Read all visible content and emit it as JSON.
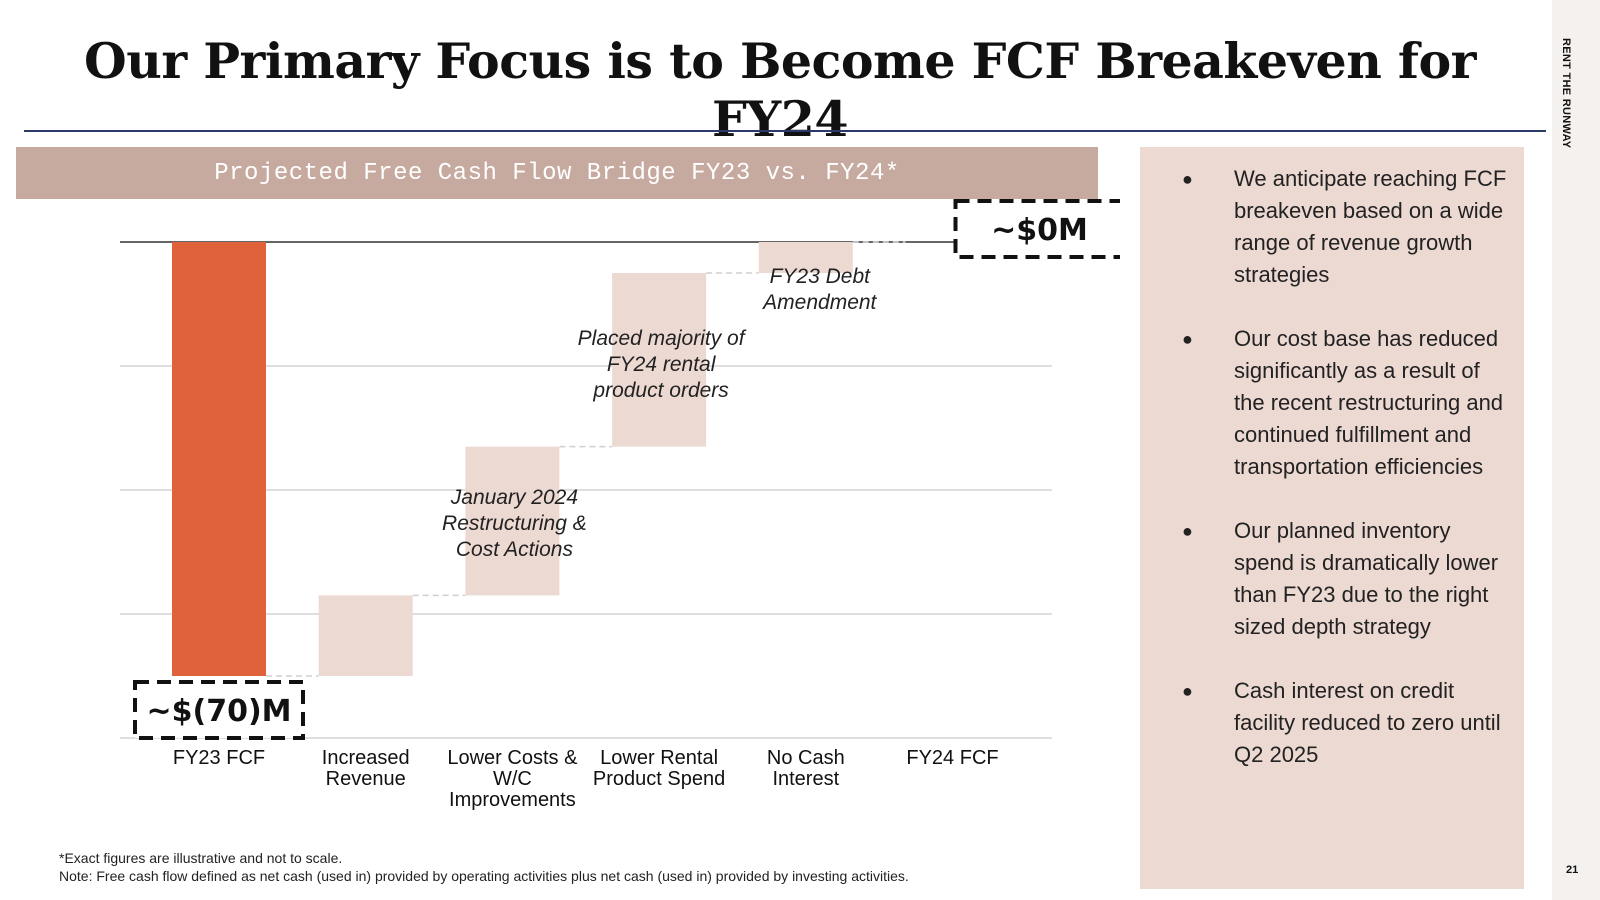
{
  "title": "Our Primary Focus is to Become FCF Breakeven for FY24",
  "brand": "RENT THE RUNWAY",
  "page_number": "21",
  "chart_data": {
    "type": "waterfall",
    "title": "Projected Free Cash Flow Bridge FY23 vs. FY24*",
    "categories": [
      "FY23 FCF",
      "Increased Revenue",
      "Lower Costs & W/C Improvements",
      "Lower Rental Product Spend",
      "No Cash Interest",
      "FY24 FCF"
    ],
    "category_lines": [
      [
        "FY23 FCF"
      ],
      [
        "Increased",
        "Revenue"
      ],
      [
        "Lower Costs &",
        "W/C",
        "Improvements"
      ],
      [
        "Lower Rental",
        "Product Spend"
      ],
      [
        "No Cash",
        "Interest"
      ],
      [
        "FY24 FCF"
      ]
    ],
    "ylim": [
      -80,
      0
    ],
    "grid": true,
    "bars": [
      {
        "category": "FY23 FCF",
        "start": 0,
        "end": -70,
        "kind": "total"
      },
      {
        "category": "Increased Revenue",
        "start": -70,
        "end": -57,
        "kind": "delta"
      },
      {
        "category": "Lower Costs & W/C Improvements",
        "start": -57,
        "end": -33,
        "kind": "delta"
      },
      {
        "category": "Lower Rental Product Spend",
        "start": -33,
        "end": -5,
        "kind": "delta"
      },
      {
        "category": "No Cash Interest",
        "start": -5,
        "end": 0,
        "kind": "delta"
      },
      {
        "category": "FY24 FCF",
        "start": 0,
        "end": 0,
        "kind": "total"
      }
    ],
    "value_labels": [
      {
        "category": "FY23 FCF",
        "text": "~$(70)M"
      },
      {
        "category": "FY24 FCF",
        "text": "~$0M"
      }
    ],
    "annotations": [
      {
        "category": "Lower Costs & W/C Improvements",
        "lines": [
          "January 2024",
          "Restructuring &",
          "Cost Actions"
        ]
      },
      {
        "category": "Lower Rental Product Spend",
        "lines": [
          "Placed majority of",
          "FY24 rental",
          "product orders"
        ]
      },
      {
        "category": "No Cash Interest",
        "lines": [
          "FY23 Debt",
          "Amendment"
        ]
      }
    ],
    "colors": {
      "total": "#e0623b",
      "delta": "#ecd9d2",
      "connector": "#cfcfcf",
      "grid": "#d4d4d4",
      "axis": "#333333"
    }
  },
  "bullets": [
    "We anticipate reaching FCF breakeven based on a wide range of revenue growth strategies",
    "Our cost base has reduced significantly as a result of the recent restructuring and continued fulfillment and transportation efficiencies",
    "Our planned inventory spend is dramatically lower than FY23 due to the right sized depth strategy",
    "Cash interest on credit facility reduced to zero until Q2 2025"
  ],
  "footnotes": [
    "*Exact figures are illustrative and not to scale.",
    "Note: Free cash flow defined as net cash (used in) provided by operating activities plus net cash (used in) provided by investing activities."
  ]
}
